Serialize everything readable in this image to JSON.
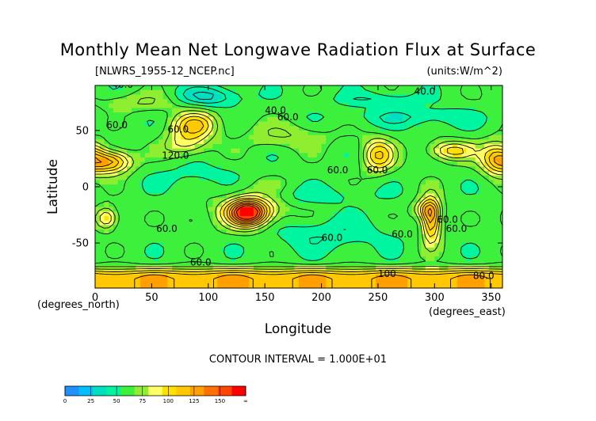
{
  "chart_data": {
    "type": "heatmap",
    "title": "Monthly Mean Net Longwave Radiation Flux at Surface",
    "source_file": "[NLWRS_1955-12_NCEP.nc]",
    "units": "(units:W/m^2)",
    "xlabel": "Longitude",
    "ylabel": "Latitude",
    "x_unit_label": "(degrees_east)",
    "y_unit_label": "(degrees_north)",
    "xlim": [
      0,
      360
    ],
    "ylim": [
      -90,
      90
    ],
    "x_ticks": [
      0,
      50,
      100,
      150,
      200,
      250,
      300,
      350
    ],
    "y_ticks": [
      -50,
      0,
      50
    ],
    "contour_interval_text": "CONTOUR INTERVAL = 1.000E+01",
    "contour_labels": [
      "40.0",
      "40.0",
      "40.0",
      "60.0",
      "60.0",
      "60.0",
      "60.0",
      "60.0",
      "60.0",
      "60.0",
      "60.0",
      "60.0",
      "100",
      "120.0",
      "60.0",
      "60.0",
      "80.0"
    ],
    "colorbar": {
      "ticks": [
        "0",
        "25",
        "50",
        "75",
        "100",
        "125",
        "150",
        "∞"
      ],
      "bins": [
        {
          "range": [
            0,
            12.5
          ],
          "color": "#1e90ff"
        },
        {
          "range": [
            12.5,
            25
          ],
          "color": "#00bfff"
        },
        {
          "range": [
            25,
            37.5
          ],
          "color": "#00e0c0"
        },
        {
          "range": [
            37.5,
            50
          ],
          "color": "#00f5a0"
        },
        {
          "range": [
            50,
            62.5
          ],
          "color": "#3cf03c"
        },
        {
          "range": [
            62.5,
            75
          ],
          "color": "#90ee30"
        },
        {
          "range": [
            75,
            87.5
          ],
          "color": "#ffff66"
        },
        {
          "range": [
            87.5,
            100
          ],
          "color": "#ffe000"
        },
        {
          "range": [
            100,
            112.5
          ],
          "color": "#ffc800"
        },
        {
          "range": [
            112.5,
            125
          ],
          "color": "#ffa000"
        },
        {
          "range": [
            125,
            137.5
          ],
          "color": "#ff7000"
        },
        {
          "range": [
            137.5,
            150
          ],
          "color": "#ff4500"
        },
        {
          "range": [
            150,
            1000
          ],
          "color": "#ff0000"
        }
      ]
    }
  }
}
